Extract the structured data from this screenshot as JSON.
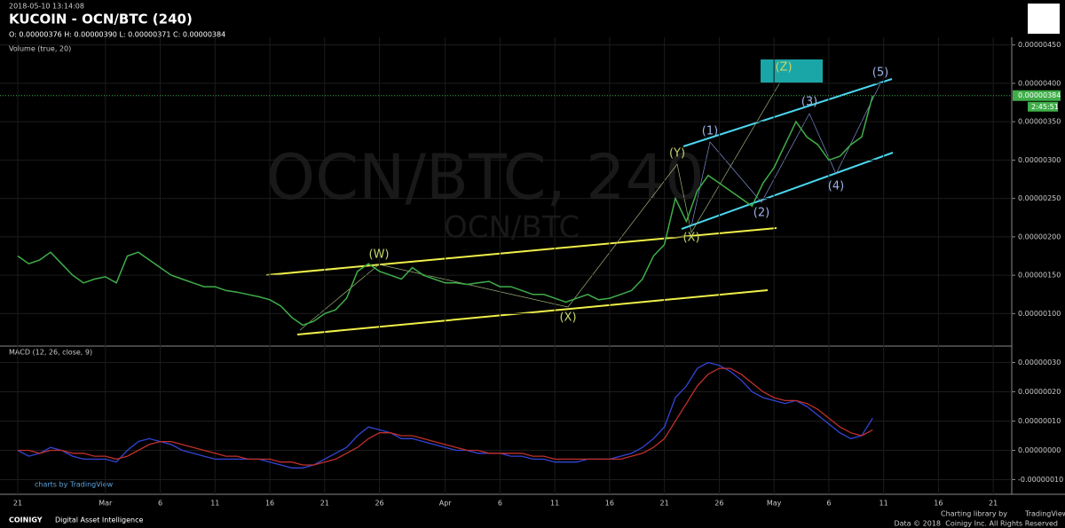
{
  "header": {
    "timestamp": "2018-05-10 13:14:08",
    "title": "KUCOIN - OCN/BTC (240)",
    "ohlc": "O: 0.00000376 H: 0.00000390 L: 0.00000371 C: 0.00000384",
    "volume_label": "Volume (true, 20)",
    "macd_label": "MACD (12, 26, close, 9)",
    "watermark": "OCN/BTC, 240",
    "watermark_sub": "OCN/BTC",
    "tv_credit": "charts by TradingView",
    "brand": "COINIGY",
    "brand_tagline": "Digital Asset Intelligence",
    "library_credit": "Charting library by",
    "library_name": "TradingView",
    "copyright": "Data © 2018",
    "rights": "Coinigy Inc. All Rights Reserved"
  },
  "chart_data": [
    {
      "type": "line",
      "color": "#3fae49",
      "categories": [
        "21",
        null,
        null,
        null,
        null,
        null,
        null,
        null,
        "Mar",
        null,
        null,
        null,
        null,
        "6",
        null,
        null,
        null,
        null,
        "11",
        null,
        null,
        null,
        null,
        "16",
        null,
        null,
        null,
        null,
        "21",
        null,
        null,
        null,
        null,
        "26",
        null,
        null,
        null,
        null,
        null,
        "Apr",
        null,
        null,
        null,
        null,
        "6",
        null,
        null,
        null,
        null,
        "11",
        null,
        null,
        null,
        null,
        "16",
        null,
        null,
        null,
        null,
        "21",
        null,
        null,
        null,
        null,
        "26",
        null,
        null,
        null,
        null,
        "May",
        null,
        null,
        null,
        null,
        "6",
        null,
        null,
        null,
        null,
        "11",
        null,
        null,
        null,
        null,
        "16",
        null,
        null,
        null,
        null,
        "21"
      ],
      "values": [
        1.75e-06,
        1.65e-06,
        1.7e-06,
        1.8e-06,
        1.65e-06,
        1.5e-06,
        1.4e-06,
        1.45e-06,
        1.48e-06,
        1.4e-06,
        1.75e-06,
        1.8e-06,
        1.7e-06,
        1.6e-06,
        1.5e-06,
        1.45e-06,
        1.4e-06,
        1.35e-06,
        1.35e-06,
        1.3e-06,
        1.28e-06,
        1.25e-06,
        1.22e-06,
        1.18e-06,
        1.1e-06,
        9.5e-07,
        8.5e-07,
        9e-07,
        1e-06,
        1.05e-06,
        1.2e-06,
        1.55e-06,
        1.65e-06,
        1.55e-06,
        1.5e-06,
        1.45e-06,
        1.6e-06,
        1.5e-06,
        1.45e-06,
        1.4e-06,
        1.4e-06,
        1.38e-06,
        1.4e-06,
        1.42e-06,
        1.35e-06,
        1.35e-06,
        1.3e-06,
        1.25e-06,
        1.25e-06,
        1.2e-06,
        1.15e-06,
        1.2e-06,
        1.25e-06,
        1.18e-06,
        1.2e-06,
        1.25e-06,
        1.3e-06,
        1.45e-06,
        1.75e-06,
        1.9e-06,
        2.5e-06,
        2.2e-06,
        2.6e-06,
        2.8e-06,
        2.7e-06,
        2.6e-06,
        2.5e-06,
        2.4e-06,
        2.7e-06,
        2.9e-06,
        3.2e-06,
        3.5e-06,
        3.3e-06,
        3.2e-06,
        3e-06,
        3.05e-06,
        3.2e-06,
        3.3e-06,
        3.84e-06,
        null,
        null,
        null,
        null,
        null,
        null,
        null,
        null,
        null,
        null,
        null
      ],
      "ylim": [
        6e-07,
        4.6e-06
      ],
      "yticks": [
        {
          "value": 1e-06,
          "label": "0.00000100"
        },
        {
          "value": 1.5e-06,
          "label": "0.00000150"
        },
        {
          "value": 2e-06,
          "label": "0.00000200"
        },
        {
          "value": 2.5e-06,
          "label": "0.00000250"
        },
        {
          "value": 3e-06,
          "label": "0.00000300"
        },
        {
          "value": 3.5e-06,
          "label": "0.00000350"
        },
        {
          "value": 4e-06,
          "label": "0.00000400"
        },
        {
          "value": 4.5e-06,
          "label": "0.00000450"
        }
      ],
      "last_price": {
        "value": 3.84e-06,
        "label": "0.00000384"
      },
      "countdown": "2:45:51",
      "grid": true,
      "annotations": [
        "(W)",
        "(X)",
        "(Y)",
        "(X)",
        "(Z)",
        "(1)",
        "(2)",
        "(3)",
        "(4)",
        "(5)"
      ]
    },
    {
      "type": "line",
      "series": [
        {
          "color": "#3345d6",
          "values": [
            0,
            -2e-08,
            -1e-08,
            1e-08,
            0,
            -2e-08,
            -3e-08,
            -3e-08,
            -3e-08,
            -4e-08,
            0,
            3e-08,
            4e-08,
            3e-08,
            2e-08,
            0,
            -1e-08,
            -2e-08,
            -3e-08,
            -3e-08,
            -3e-08,
            -3e-08,
            -3e-08,
            -4e-08,
            -5e-08,
            -6e-08,
            -6e-08,
            -5e-08,
            -3e-08,
            -1e-08,
            1e-08,
            5e-08,
            8e-08,
            7e-08,
            6e-08,
            4e-08,
            4e-08,
            3e-08,
            2e-08,
            1e-08,
            0,
            0,
            -1e-08,
            -1e-08,
            -1e-08,
            -2e-08,
            -2e-08,
            -3e-08,
            -3e-08,
            -4e-08,
            -4e-08,
            -4e-08,
            -3e-08,
            -3e-08,
            -3e-08,
            -2e-08,
            -1e-08,
            1e-08,
            4e-08,
            8e-08,
            1.8e-07,
            2.2e-07,
            2.8e-07,
            3e-07,
            2.9e-07,
            2.7e-07,
            2.4e-07,
            2e-07,
            1.8e-07,
            1.7e-07,
            1.6e-07,
            1.7e-07,
            1.5e-07,
            1.2e-07,
            9e-08,
            6e-08,
            4e-08,
            5e-08,
            1.1e-07,
            null,
            null,
            null,
            null,
            null,
            null,
            null,
            null,
            null,
            null,
            null
          ]
        },
        {
          "color": "#c0302b",
          "values": [
            0,
            0,
            -1e-08,
            0,
            0,
            -1e-08,
            -1e-08,
            -2e-08,
            -2e-08,
            -3e-08,
            -2e-08,
            0,
            2e-08,
            3e-08,
            3e-08,
            2e-08,
            1e-08,
            0,
            -1e-08,
            -2e-08,
            -2e-08,
            -3e-08,
            -3e-08,
            -3e-08,
            -4e-08,
            -4e-08,
            -5e-08,
            -5e-08,
            -4e-08,
            -3e-08,
            -1e-08,
            1e-08,
            4e-08,
            6e-08,
            6e-08,
            5e-08,
            5e-08,
            4e-08,
            3e-08,
            2e-08,
            1e-08,
            0,
            0,
            -1e-08,
            -1e-08,
            -1e-08,
            -1e-08,
            -2e-08,
            -2e-08,
            -3e-08,
            -3e-08,
            -3e-08,
            -3e-08,
            -3e-08,
            -3e-08,
            -3e-08,
            -2e-08,
            -1e-08,
            1e-08,
            4e-08,
            1e-07,
            1.6e-07,
            2.2e-07,
            2.6e-07,
            2.8e-07,
            2.8e-07,
            2.6e-07,
            2.3e-07,
            2e-07,
            1.8e-07,
            1.7e-07,
            1.7e-07,
            1.6e-07,
            1.4e-07,
            1.1e-07,
            8e-08,
            6e-08,
            5e-08,
            7e-08,
            null,
            null,
            null,
            null,
            null,
            null,
            null,
            null,
            null,
            null,
            null
          ]
        }
      ],
      "ylim": [
        -1.5e-07,
        3.5e-07
      ],
      "yticks": [
        {
          "value": -1e-07,
          "label": "-0.00000010"
        },
        {
          "value": 0,
          "label": "0.00000000"
        },
        {
          "value": 1e-07,
          "label": "0.00000010"
        },
        {
          "value": 2e-07,
          "label": "0.00000020"
        },
        {
          "value": 3e-07,
          "label": "0.00000030"
        }
      ],
      "grid": true
    }
  ]
}
